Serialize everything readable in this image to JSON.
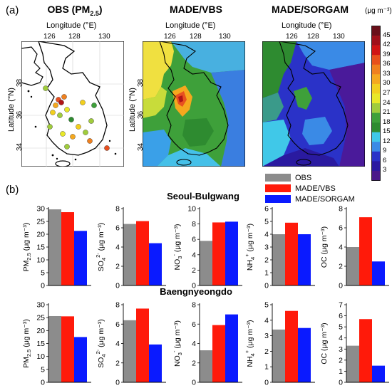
{
  "panel_a_label": "(a)",
  "panel_b_label": "(b)",
  "maps": [
    {
      "title": "OBS (PM2.5)",
      "scheme": "obs"
    },
    {
      "title": "MADE/VBS",
      "scheme": "vbs"
    },
    {
      "title": "MADE/SORGAM",
      "scheme": "sorgam"
    }
  ],
  "map_axes": {
    "xlabel": "Longitude (°E)",
    "ylabel": "Latitude (°N)",
    "xticks": [
      "126",
      "128",
      "130"
    ],
    "yticks": [
      "38",
      "36",
      "34"
    ]
  },
  "colorbar": {
    "title": "(μg m⁻³)",
    "ticks": [
      "45",
      "42",
      "39",
      "36",
      "33",
      "30",
      "27",
      "24",
      "21",
      "18",
      "15",
      "12",
      "9",
      "6",
      "3"
    ],
    "colors": [
      "#6a0f1a",
      "#a0101a",
      "#d01414",
      "#e8501c",
      "#f0801e",
      "#f5a81e",
      "#f2cf1e",
      "#e8e828",
      "#a0cc3c",
      "#3ea03a",
      "#2e8b30",
      "#40c8e8",
      "#3a8ae6",
      "#2a32c8",
      "#2a1aa0",
      "#4a1a8a"
    ]
  },
  "legend": [
    {
      "label": "OBS",
      "color": "#8c8c8c"
    },
    {
      "label": "MADE/VBS",
      "color": "#ff1a0a"
    },
    {
      "label": "MADE/SORGAM",
      "color": "#0a1aff"
    }
  ],
  "stations": [
    {
      "name": "Seoul-Bulgwang"
    },
    {
      "name": "Baengnyeongdo"
    }
  ],
  "chart_data": [
    {
      "type": "bar",
      "station": "Seoul-Bulgwang",
      "species": "PM2.5",
      "ylabel": "PM2.5 (μg m⁻³)",
      "ylim": [
        0,
        30
      ],
      "yticks": [
        0,
        5,
        10,
        15,
        20,
        25,
        30
      ],
      "series": [
        {
          "name": "OBS",
          "values": [
            29.7
          ]
        },
        {
          "name": "MADE/VBS",
          "values": [
            28.6
          ]
        },
        {
          "name": "MADE/SORGAM",
          "values": [
            21.3
          ]
        }
      ]
    },
    {
      "type": "bar",
      "station": "Seoul-Bulgwang",
      "species": "SO4 2-",
      "ylabel": "SO4 2- (μg m⁻³)",
      "ylim": [
        0,
        8
      ],
      "yticks": [
        0,
        2,
        4,
        6,
        8
      ],
      "series": [
        {
          "name": "OBS",
          "values": [
            6.4
          ]
        },
        {
          "name": "MADE/VBS",
          "values": [
            6.7
          ]
        },
        {
          "name": "MADE/SORGAM",
          "values": [
            4.4
          ]
        }
      ]
    },
    {
      "type": "bar",
      "station": "Seoul-Bulgwang",
      "species": "NO3 -",
      "ylabel": "NO3 - (μg m⁻³)",
      "ylim": [
        0,
        10
      ],
      "yticks": [
        0,
        2,
        4,
        6,
        8,
        10
      ],
      "series": [
        {
          "name": "OBS",
          "values": [
            5.8
          ]
        },
        {
          "name": "MADE/VBS",
          "values": [
            8.2
          ]
        },
        {
          "name": "MADE/SORGAM",
          "values": [
            8.3
          ]
        }
      ]
    },
    {
      "type": "bar",
      "station": "Seoul-Bulgwang",
      "species": "NH4 +",
      "ylabel": "NH4 + (μg m⁻³)",
      "ylim": [
        0,
        6
      ],
      "yticks": [
        0,
        1,
        2,
        3,
        4,
        5,
        6
      ],
      "series": [
        {
          "name": "OBS",
          "values": [
            4.0
          ]
        },
        {
          "name": "MADE/VBS",
          "values": [
            4.9
          ]
        },
        {
          "name": "MADE/SORGAM",
          "values": [
            4.0
          ]
        }
      ]
    },
    {
      "type": "bar",
      "station": "Seoul-Bulgwang",
      "species": "OC",
      "ylabel": "OC (μg m⁻³)",
      "ylim": [
        0,
        8
      ],
      "yticks": [
        0,
        2,
        4,
        6,
        8
      ],
      "series": [
        {
          "name": "OBS",
          "values": [
            4.0
          ]
        },
        {
          "name": "MADE/VBS",
          "values": [
            7.1
          ]
        },
        {
          "name": "MADE/SORGAM",
          "values": [
            2.5
          ]
        }
      ]
    },
    {
      "type": "bar",
      "station": "Baengnyeongdo",
      "species": "PM2.5",
      "ylabel": "PM2.5 (μg m⁻³)",
      "ylim": [
        0,
        30
      ],
      "yticks": [
        0,
        5,
        10,
        15,
        20,
        25,
        30
      ],
      "series": [
        {
          "name": "OBS",
          "values": [
            25.6
          ]
        },
        {
          "name": "MADE/VBS",
          "values": [
            25.5
          ]
        },
        {
          "name": "MADE/SORGAM",
          "values": [
            17.5
          ]
        }
      ]
    },
    {
      "type": "bar",
      "station": "Baengnyeongdo",
      "species": "SO4 2-",
      "ylabel": "SO4 2- (μg m⁻³)",
      "ylim": [
        0,
        8
      ],
      "yticks": [
        0,
        2,
        4,
        6,
        8
      ],
      "series": [
        {
          "name": "OBS",
          "values": [
            6.4
          ]
        },
        {
          "name": "MADE/VBS",
          "values": [
            7.6
          ]
        },
        {
          "name": "MADE/SORGAM",
          "values": [
            3.9
          ]
        }
      ]
    },
    {
      "type": "bar",
      "station": "Baengnyeongdo",
      "species": "NO3 -",
      "ylabel": "NO3 - (μg m⁻³)",
      "ylim": [
        0,
        8
      ],
      "yticks": [
        0,
        2,
        4,
        6,
        8
      ],
      "series": [
        {
          "name": "OBS",
          "values": [
            3.3
          ]
        },
        {
          "name": "MADE/VBS",
          "values": [
            5.9
          ]
        },
        {
          "name": "MADE/SORGAM",
          "values": [
            7.0
          ]
        }
      ]
    },
    {
      "type": "bar",
      "station": "Baengnyeongdo",
      "species": "NH4 +",
      "ylabel": "NH4 + (μg m⁻³)",
      "ylim": [
        0,
        5
      ],
      "yticks": [
        0,
        1,
        2,
        3,
        4,
        5
      ],
      "series": [
        {
          "name": "OBS",
          "values": [
            3.4
          ]
        },
        {
          "name": "MADE/VBS",
          "values": [
            4.6
          ]
        },
        {
          "name": "MADE/SORGAM",
          "values": [
            3.5
          ]
        }
      ]
    },
    {
      "type": "bar",
      "station": "Baengnyeongdo",
      "species": "OC",
      "ylabel": "OC (μg m⁻³)",
      "ylim": [
        0,
        7
      ],
      "yticks": [
        0,
        1,
        2,
        3,
        4,
        5,
        6,
        7
      ],
      "series": [
        {
          "name": "OBS",
          "values": [
            3.3
          ]
        },
        {
          "name": "MADE/VBS",
          "values": [
            5.7
          ]
        },
        {
          "name": "MADE/SORGAM",
          "values": [
            1.5
          ]
        }
      ]
    }
  ]
}
